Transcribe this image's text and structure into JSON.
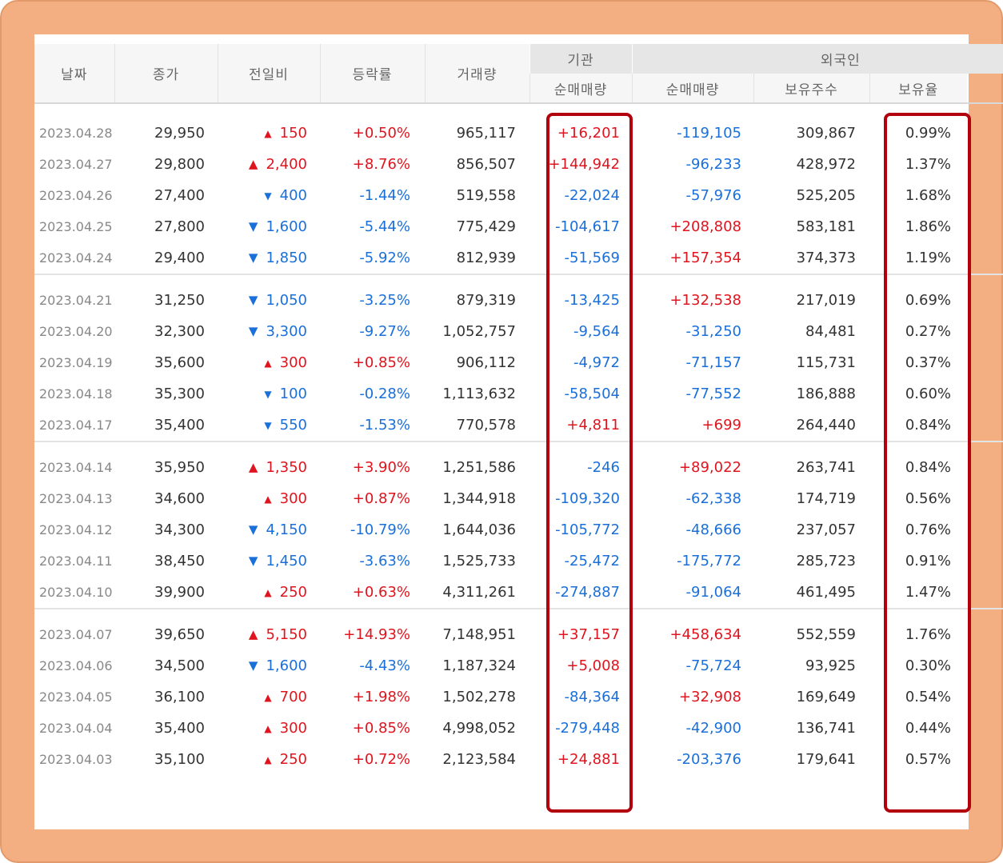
{
  "headers": {
    "date": "날짜",
    "close": "종가",
    "change": "전일비",
    "rate": "등락률",
    "volume": "거래량",
    "institution": "기관",
    "foreign": "외국인",
    "inst_net": "순매매량",
    "foreign_net": "순매매량",
    "foreign_holding": "보유주수",
    "foreign_ratio": "보유율"
  },
  "colors": {
    "up": "#e0141e",
    "down": "#1a6fd9",
    "highlight": "#b3000d",
    "frame": "#f3ae82"
  },
  "groups": [
    [
      {
        "date": "2023.04.28",
        "close": "29,950",
        "dir": "up",
        "change": "150",
        "rate": "+0.50%",
        "volume": "965,117",
        "inst": "+16,201",
        "fnet": "-119,105",
        "fhold": "309,867",
        "frate": "0.99%"
      },
      {
        "date": "2023.04.27",
        "close": "29,800",
        "dir": "up",
        "change": "2,400",
        "rate": "+8.76%",
        "volume": "856,507",
        "inst": "+144,942",
        "fnet": "-96,233",
        "fhold": "428,972",
        "frate": "1.37%"
      },
      {
        "date": "2023.04.26",
        "close": "27,400",
        "dir": "down",
        "change": "400",
        "rate": "-1.44%",
        "volume": "519,558",
        "inst": "-22,024",
        "fnet": "-57,976",
        "fhold": "525,205",
        "frate": "1.68%"
      },
      {
        "date": "2023.04.25",
        "close": "27,800",
        "dir": "down",
        "change": "1,600",
        "rate": "-5.44%",
        "volume": "775,429",
        "inst": "-104,617",
        "fnet": "+208,808",
        "fhold": "583,181",
        "frate": "1.86%"
      },
      {
        "date": "2023.04.24",
        "close": "29,400",
        "dir": "down",
        "change": "1,850",
        "rate": "-5.92%",
        "volume": "812,939",
        "inst": "-51,569",
        "fnet": "+157,354",
        "fhold": "374,373",
        "frate": "1.19%"
      }
    ],
    [
      {
        "date": "2023.04.21",
        "close": "31,250",
        "dir": "down",
        "change": "1,050",
        "rate": "-3.25%",
        "volume": "879,319",
        "inst": "-13,425",
        "fnet": "+132,538",
        "fhold": "217,019",
        "frate": "0.69%"
      },
      {
        "date": "2023.04.20",
        "close": "32,300",
        "dir": "down",
        "change": "3,300",
        "rate": "-9.27%",
        "volume": "1,052,757",
        "inst": "-9,564",
        "fnet": "-31,250",
        "fhold": "84,481",
        "frate": "0.27%"
      },
      {
        "date": "2023.04.19",
        "close": "35,600",
        "dir": "up",
        "change": "300",
        "rate": "+0.85%",
        "volume": "906,112",
        "inst": "-4,972",
        "fnet": "-71,157",
        "fhold": "115,731",
        "frate": "0.37%"
      },
      {
        "date": "2023.04.18",
        "close": "35,300",
        "dir": "down",
        "change": "100",
        "rate": "-0.28%",
        "volume": "1,113,632",
        "inst": "-58,504",
        "fnet": "-77,552",
        "fhold": "186,888",
        "frate": "0.60%"
      },
      {
        "date": "2023.04.17",
        "close": "35,400",
        "dir": "down",
        "change": "550",
        "rate": "-1.53%",
        "volume": "770,578",
        "inst": "+4,811",
        "fnet": "+699",
        "fhold": "264,440",
        "frate": "0.84%"
      }
    ],
    [
      {
        "date": "2023.04.14",
        "close": "35,950",
        "dir": "up",
        "change": "1,350",
        "rate": "+3.90%",
        "volume": "1,251,586",
        "inst": "-246",
        "fnet": "+89,022",
        "fhold": "263,741",
        "frate": "0.84%"
      },
      {
        "date": "2023.04.13",
        "close": "34,600",
        "dir": "up",
        "change": "300",
        "rate": "+0.87%",
        "volume": "1,344,918",
        "inst": "-109,320",
        "fnet": "-62,338",
        "fhold": "174,719",
        "frate": "0.56%"
      },
      {
        "date": "2023.04.12",
        "close": "34,300",
        "dir": "down",
        "change": "4,150",
        "rate": "-10.79%",
        "volume": "1,644,036",
        "inst": "-105,772",
        "fnet": "-48,666",
        "fhold": "237,057",
        "frate": "0.76%"
      },
      {
        "date": "2023.04.11",
        "close": "38,450",
        "dir": "down",
        "change": "1,450",
        "rate": "-3.63%",
        "volume": "1,525,733",
        "inst": "-25,472",
        "fnet": "-175,772",
        "fhold": "285,723",
        "frate": "0.91%"
      },
      {
        "date": "2023.04.10",
        "close": "39,900",
        "dir": "up",
        "change": "250",
        "rate": "+0.63%",
        "volume": "4,311,261",
        "inst": "-274,887",
        "fnet": "-91,064",
        "fhold": "461,495",
        "frate": "1.47%"
      }
    ],
    [
      {
        "date": "2023.04.07",
        "close": "39,650",
        "dir": "up",
        "change": "5,150",
        "rate": "+14.93%",
        "volume": "7,148,951",
        "inst": "+37,157",
        "fnet": "+458,634",
        "fhold": "552,559",
        "frate": "1.76%"
      },
      {
        "date": "2023.04.06",
        "close": "34,500",
        "dir": "down",
        "change": "1,600",
        "rate": "-4.43%",
        "volume": "1,187,324",
        "inst": "+5,008",
        "fnet": "-75,724",
        "fhold": "93,925",
        "frate": "0.30%"
      },
      {
        "date": "2023.04.05",
        "close": "36,100",
        "dir": "up",
        "change": "700",
        "rate": "+1.98%",
        "volume": "1,502,278",
        "inst": "-84,364",
        "fnet": "+32,908",
        "fhold": "169,649",
        "frate": "0.54%"
      },
      {
        "date": "2023.04.04",
        "close": "35,400",
        "dir": "up",
        "change": "300",
        "rate": "+0.85%",
        "volume": "4,998,052",
        "inst": "-279,448",
        "fnet": "-42,900",
        "fhold": "136,741",
        "frate": "0.44%"
      },
      {
        "date": "2023.04.03",
        "close": "35,100",
        "dir": "up",
        "change": "250",
        "rate": "+0.72%",
        "volume": "2,123,584",
        "inst": "+24,881",
        "fnet": "-203,376",
        "fhold": "179,641",
        "frate": "0.57%"
      }
    ]
  ]
}
